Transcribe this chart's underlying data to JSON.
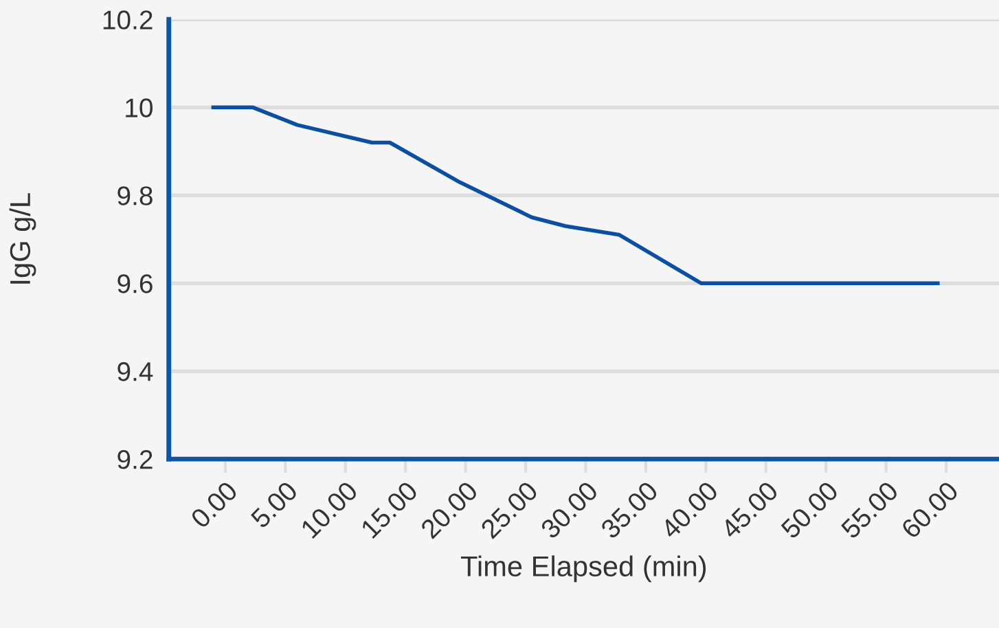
{
  "chart_data": {
    "type": "line",
    "xlabel": "Time Elapsed (min)",
    "ylabel": "IgG g/L",
    "x": [
      -1,
      2.3,
      6,
      12.2,
      13.7,
      19.5,
      25.5,
      28.3,
      32.8,
      39.6,
      59.3
    ],
    "series": [
      {
        "color": "#0a4fa6",
        "values": [
          10.0,
          10.0,
          9.96,
          9.92,
          9.92,
          9.83,
          9.75,
          9.73,
          9.71,
          9.6,
          9.6
        ]
      }
    ],
    "xlim": [
      -4.7,
      64.4
    ],
    "xticks": [
      {
        "value": 0,
        "label": "0.00"
      },
      {
        "value": 5,
        "label": "5.00"
      },
      {
        "value": 10,
        "label": "10.00"
      },
      {
        "value": 15,
        "label": "15.00"
      },
      {
        "value": 20,
        "label": "20.00"
      },
      {
        "value": 25,
        "label": "25.00"
      },
      {
        "value": 30,
        "label": "30.00"
      },
      {
        "value": 35,
        "label": "35.00"
      },
      {
        "value": 40,
        "label": "40.00"
      },
      {
        "value": 45,
        "label": "45.00"
      },
      {
        "value": 50,
        "label": "50.00"
      },
      {
        "value": 55,
        "label": "55.00"
      },
      {
        "value": 60,
        "label": "60.00"
      }
    ],
    "ylim": [
      9.2,
      10.2
    ],
    "yticks": [
      9.2,
      9.4,
      9.6,
      9.8,
      10,
      10.2
    ],
    "grid": "y",
    "marker": "none",
    "line_style": "solid"
  }
}
